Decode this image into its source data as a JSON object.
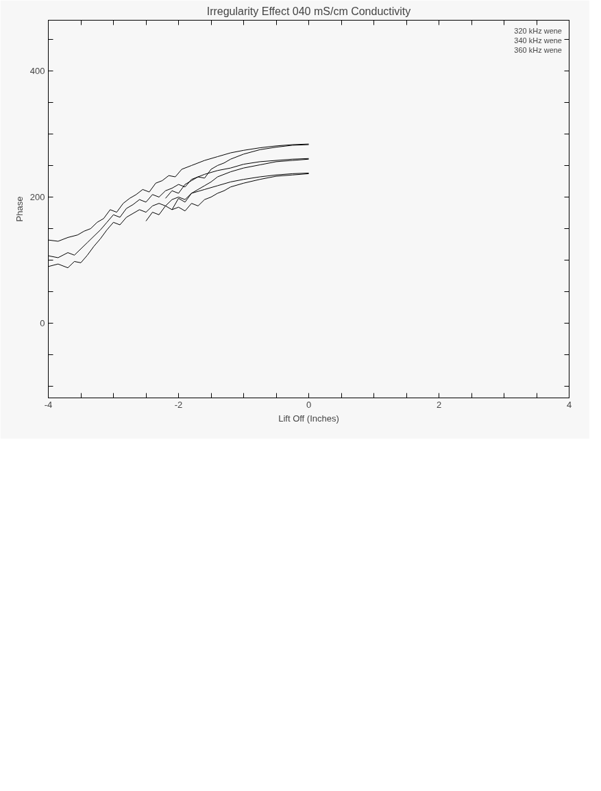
{
  "chart_data": {
    "type": "line",
    "title": "Irregularity Effect 040 mS/cm Conductivity",
    "xlabel": "Lift Off (Inches)",
    "ylabel": "Phase",
    "xlim": [
      -4,
      4
    ],
    "ylim": [
      -118,
      480
    ],
    "xticks": [
      -4,
      {
        "value": -3.5,
        "label": null
      },
      {
        "value": -3,
        "label": null
      },
      {
        "value": -2.5,
        "label": null
      },
      -2,
      {
        "value": -1.5,
        "label": null
      },
      {
        "value": -1,
        "label": null
      },
      {
        "value": -0.5,
        "label": null
      },
      0,
      {
        "value": 0.5,
        "label": null
      },
      {
        "value": 1,
        "label": null
      },
      {
        "value": 1.5,
        "label": null
      },
      2,
      {
        "value": 2.5,
        "label": null
      },
      {
        "value": 3,
        "label": null
      },
      {
        "value": 3.5,
        "label": null
      },
      4
    ],
    "yticks": [
      {
        "value": -100,
        "label": null
      },
      {
        "value": -50,
        "label": null
      },
      0,
      {
        "value": 50,
        "label": null
      },
      {
        "value": 100,
        "label": null
      },
      {
        "value": 150,
        "label": null
      },
      200,
      {
        "value": 250,
        "label": null
      },
      {
        "value": 300,
        "label": null
      },
      {
        "value": 350,
        "label": null
      },
      400,
      {
        "value": 450,
        "label": null
      }
    ],
    "grid": false,
    "marker": "none",
    "line_style": "solid",
    "legend": "top right",
    "series": [
      {
        "name": "320 kHz wene",
        "color": "#000000",
        "x": [
          -4,
          -3.85,
          -3.7,
          -3.55,
          -3.45,
          -3.35,
          -3.25,
          -3.15,
          -3.05,
          -2.95,
          -2.85,
          -2.75,
          -2.65,
          -2.55,
          -2.45,
          -2.35,
          -2.25,
          -2.15,
          -2.05,
          -1.95,
          -1.8,
          -1.6,
          -1.4,
          -1.2,
          -1,
          -0.75,
          -0.5,
          -0.25,
          0
        ],
        "values": [
          132,
          130,
          136,
          140,
          146,
          150,
          160,
          166,
          180,
          176,
          190,
          198,
          204,
          212,
          208,
          222,
          226,
          234,
          232,
          244,
          250,
          258,
          264,
          270,
          274,
          278,
          281,
          283,
          284
        ]
      },
      {
        "color": "#000000",
        "x": [
          -2.2,
          -2.1,
          -2,
          -1.9,
          -1.8,
          -1.7,
          -1.6,
          -1.5,
          -1.4,
          -1.3,
          -1.2,
          -1,
          -0.75,
          -0.5,
          -0.25,
          0
        ],
        "values": [
          198,
          210,
          206,
          220,
          226,
          232,
          230,
          244,
          250,
          254,
          260,
          268,
          275,
          279,
          282,
          283
        ]
      },
      {
        "name": "340 kHz wene",
        "color": "#000000",
        "x": [
          -4,
          -3.85,
          -3.7,
          -3.6,
          -3.5,
          -3.4,
          -3.3,
          -3.2,
          -3.1,
          -3,
          -2.9,
          -2.8,
          -2.7,
          -2.6,
          -2.5,
          -2.4,
          -2.3,
          -2.2,
          -2.1,
          -2,
          -1.9,
          -1.8,
          -1.6,
          -1.4,
          -1.2,
          -1,
          -0.75,
          -0.5,
          -0.25,
          0
        ],
        "values": [
          107,
          104,
          112,
          108,
          118,
          128,
          138,
          148,
          160,
          172,
          168,
          182,
          188,
          196,
          192,
          204,
          200,
          210,
          214,
          220,
          216,
          228,
          236,
          242,
          246,
          252,
          256,
          258,
          260,
          261
        ]
      },
      {
        "color": "#000000",
        "x": [
          -2.5,
          -2.4,
          -2.3,
          -2.2,
          -2.1,
          -2,
          -1.9,
          -1.8,
          -1.7,
          -1.6,
          -1.5,
          -1.4,
          -1.3,
          -1.2,
          -1,
          -0.75,
          -0.5,
          -0.25,
          0
        ],
        "values": [
          162,
          176,
          172,
          186,
          180,
          198,
          192,
          206,
          212,
          218,
          224,
          232,
          236,
          240,
          246,
          251,
          256,
          258,
          260
        ]
      },
      {
        "name": "360 kHz wene",
        "color": "#000000",
        "x": [
          -4,
          -3.85,
          -3.7,
          -3.6,
          -3.5,
          -3.4,
          -3.3,
          -3.2,
          -3.1,
          -3,
          -2.9,
          -2.8,
          -2.7,
          -2.6,
          -2.5,
          -2.4,
          -2.3,
          -2.2,
          -2.1,
          -2,
          -1.9,
          -1.8,
          -1.6,
          -1.4,
          -1.2,
          -1,
          -0.75,
          -0.5,
          -0.25,
          0
        ],
        "values": [
          90,
          94,
          88,
          98,
          96,
          108,
          122,
          134,
          148,
          160,
          156,
          168,
          174,
          180,
          176,
          186,
          190,
          186,
          196,
          200,
          196,
          206,
          212,
          218,
          224,
          228,
          232,
          235,
          237,
          238
        ]
      },
      {
        "color": "#000000",
        "x": [
          -2.1,
          -2,
          -1.9,
          -1.8,
          -1.7,
          -1.6,
          -1.5,
          -1.4,
          -1.3,
          -1.2,
          -1,
          -0.75,
          -0.5,
          -0.25,
          0
        ],
        "values": [
          180,
          184,
          178,
          190,
          186,
          196,
          200,
          206,
          210,
          216,
          222,
          228,
          233,
          235,
          237
        ]
      }
    ]
  }
}
